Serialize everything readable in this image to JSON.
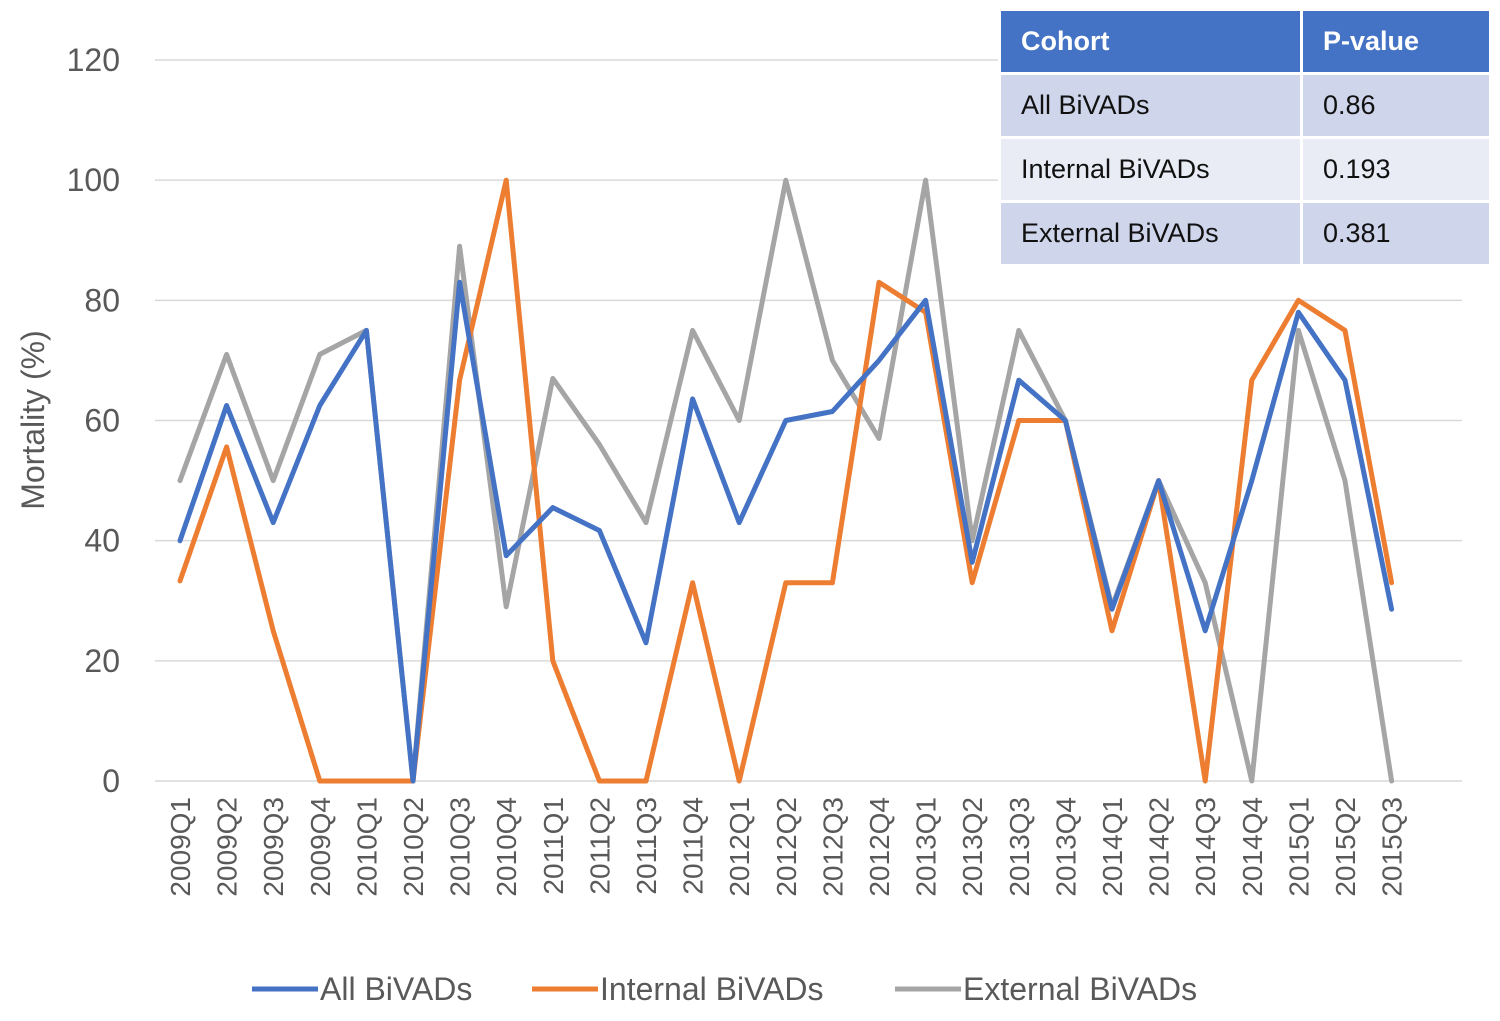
{
  "colors": {
    "all": "#4472c4",
    "internal": "#ed7d31",
    "external": "#a5a5a5",
    "grid": "#d9d9d9",
    "axis_text": "#595959",
    "table_header": "#4472c4"
  },
  "chart_data": {
    "type": "line",
    "title": "",
    "xlabel": "",
    "ylabel": "Mortality (%)",
    "ylim": [
      0,
      120
    ],
    "yticks": [
      0,
      20,
      40,
      60,
      80,
      100,
      120
    ],
    "grid": true,
    "legend_position": "bottom",
    "categories": [
      "2009Q1",
      "2009Q2",
      "2009Q3",
      "2009Q4",
      "2010Q1",
      "2010Q2",
      "2010Q3",
      "2010Q4",
      "2011Q1",
      "2011Q2",
      "2011Q3",
      "2011Q4",
      "2012Q1",
      "2012Q2",
      "2012Q3",
      "2012Q4",
      "2013Q1",
      "2013Q2",
      "2013Q3",
      "2013Q4",
      "2014Q1",
      "2014Q2",
      "2014Q3",
      "2014Q4",
      "2015Q1",
      "2015Q2",
      "2015Q3"
    ],
    "series": [
      {
        "name": "All BiVADs",
        "key": "all",
        "values": [
          40,
          62.5,
          43,
          62.5,
          75,
          0,
          83,
          37.5,
          45.5,
          41.7,
          23,
          63.6,
          43,
          60,
          61.5,
          70,
          80,
          36.4,
          66.7,
          60,
          28.6,
          50,
          25,
          50,
          78,
          66.7,
          28.6
        ]
      },
      {
        "name": "Internal BiVADs",
        "key": "internal",
        "values": [
          33.3,
          55.6,
          25,
          0,
          0,
          0,
          66.7,
          100,
          20,
          0,
          0,
          33,
          0,
          33,
          33,
          83,
          78,
          33,
          60,
          60,
          25,
          50,
          0,
          66.7,
          80,
          75,
          33
        ]
      },
      {
        "name": "External BiVADs",
        "key": "external",
        "values": [
          50,
          71,
          50,
          71,
          75,
          0,
          89,
          29,
          67,
          56,
          43,
          75,
          60,
          100,
          70,
          57,
          100,
          40,
          75,
          60,
          29,
          50,
          33,
          0,
          75,
          50,
          0
        ]
      }
    ]
  },
  "pvalue_table": {
    "headers": [
      "Cohort",
      "P-value"
    ],
    "rows": [
      {
        "cohort": "All BiVADs",
        "pvalue": "0.86"
      },
      {
        "cohort": "Internal BiVADs",
        "pvalue": "0.193"
      },
      {
        "cohort": "External BiVADs",
        "pvalue": "0.381"
      }
    ]
  }
}
